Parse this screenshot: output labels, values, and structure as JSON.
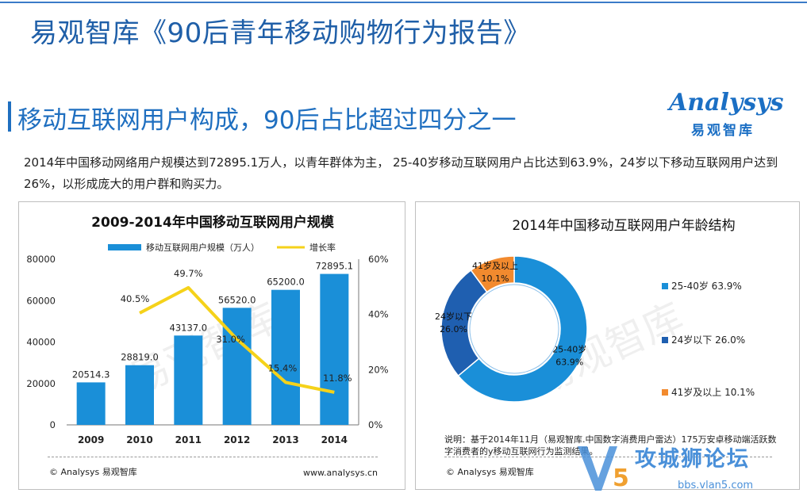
{
  "page_title": "易观智库《90后青年移动购物行为报告》",
  "section_title": "移动互联网用户构成，90后占比超过四分之一",
  "logo": {
    "text": "Analysys",
    "sub": "易观智库"
  },
  "intro_text": "2014年中国移动网络用户规模达到72895.1万人，以青年群体为主， 25-40岁移动互联网用户占比达到63.9%，24岁以下移动互联网用户达到26%，以形成庞大的用户群和购买力。",
  "left_panel": {
    "footer_left": "© Analysys 易观智库",
    "footer_right": "www.analysys.cn",
    "watermark": "易观智库"
  },
  "right_panel": {
    "footer_left": "© Analysys 易观智库",
    "note": "说明：基于2014年11月（易观智库.中国数字消费用户雷达）175万安卓移动端活跃数字消费者的y移动互联网行为监测结果。",
    "watermark": "易观智库"
  },
  "site_watermark": {
    "text": "攻城狮论坛",
    "url": "bbs.vlan5.com"
  },
  "chart_data": [
    {
      "type": "bar",
      "title": "2009-2014年中国移动互联网用户规模",
      "categories": [
        "2009",
        "2010",
        "2011",
        "2012",
        "2013",
        "2014"
      ],
      "series": [
        {
          "name": "移动互联网用户规模（万人）",
          "kind": "bar",
          "axis": "left",
          "color": "#1a8fd8",
          "values": [
            20514.3,
            28819.0,
            43137.0,
            56520.0,
            65200.0,
            72895.1
          ],
          "labels": [
            "20514.3",
            "28819.0",
            "43137.0",
            "56520.0",
            "65200.0",
            "72895.1"
          ]
        },
        {
          "name": "增长率",
          "kind": "line",
          "axis": "right",
          "color": "#f5d21a",
          "values": [
            null,
            40.5,
            49.7,
            31.0,
            15.4,
            11.8
          ],
          "labels": [
            "",
            "40.5%",
            "49.7%",
            "31.0%",
            "15.4%",
            "11.8%"
          ]
        }
      ],
      "ylim": [
        0,
        80000
      ],
      "yticks": [
        "0",
        "20000",
        "40000",
        "60000",
        "80000"
      ],
      "y2lim": [
        0,
        60
      ],
      "y2ticks": [
        "0%",
        "20%",
        "40%",
        "60%"
      ]
    },
    {
      "type": "pie",
      "title": "2014年中国移动互联网用户年龄结构",
      "slices": [
        {
          "name": "25-40岁",
          "value": 63.9,
          "label": "63.9%",
          "color": "#1a8fd8",
          "legend": "25-40岁  63.9%"
        },
        {
          "name": "24岁以下",
          "value": 26.0,
          "label": "26.0%",
          "color": "#1f5fb0",
          "legend": "24岁以下  26.0%"
        },
        {
          "name": "41岁及以上",
          "value": 10.1,
          "label": "10.1%",
          "color": "#f28a2e",
          "legend": "41岁及以上  10.1%"
        }
      ]
    }
  ]
}
